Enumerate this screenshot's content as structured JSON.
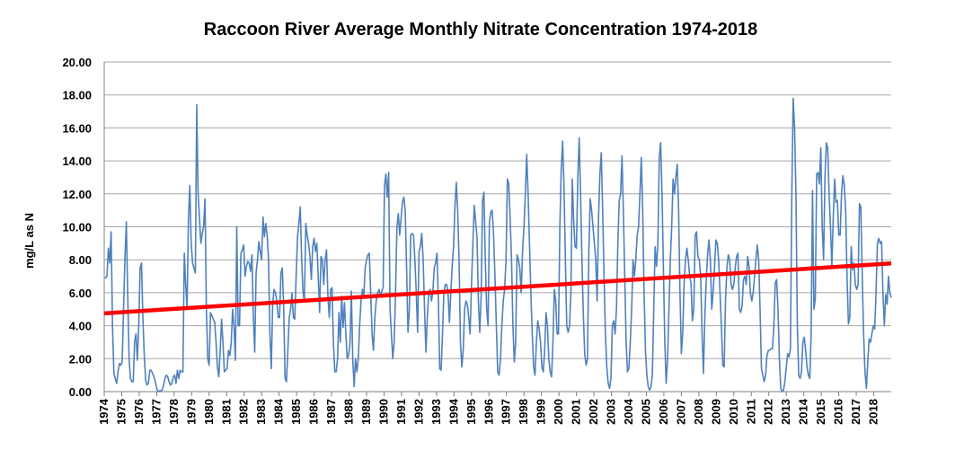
{
  "chart_data": {
    "type": "line",
    "title": "Raccoon River Average Monthly Nitrate Concentration 1974-2018",
    "xlabel": "",
    "ylabel": "mg/L as N",
    "xlim": [
      1974,
      2019
    ],
    "ylim": [
      0,
      20
    ],
    "y_ticks": [
      "0.00",
      "2.00",
      "4.00",
      "6.00",
      "8.00",
      "10.00",
      "12.00",
      "14.00",
      "16.00",
      "18.00",
      "20.00"
    ],
    "x_ticks": [
      "1974",
      "1975",
      "1976",
      "1977",
      "1978",
      "1979",
      "1980",
      "1981",
      "1982",
      "1983",
      "1984",
      "1985",
      "1986",
      "1987",
      "1988",
      "1989",
      "1990",
      "1991",
      "1992",
      "1993",
      "1994",
      "1995",
      "1996",
      "1997",
      "1998",
      "1999",
      "2000",
      "2001",
      "2002",
      "2003",
      "2004",
      "2005",
      "2006",
      "2007",
      "2008",
      "2009",
      "2010",
      "2011",
      "2012",
      "2013",
      "2014",
      "2015",
      "2016",
      "2017",
      "2018"
    ],
    "grid": {
      "horizontal": true,
      "vertical": false
    },
    "legend": "none",
    "colors": {
      "series": "#4f81bd",
      "trend": "#ff0000",
      "grid": "#a6a6a6",
      "axis": "#808080"
    },
    "series": [
      {
        "values": [
          6.9,
          6.9,
          7.0,
          8.7,
          7.8,
          9.7,
          4.0,
          1.1,
          0.8,
          0.5,
          1.2,
          1.7,
          1.6,
          1.8,
          5.0,
          8.0,
          10.3,
          6.0,
          2.0,
          0.8,
          0.6,
          0.6,
          3.0,
          3.5,
          1.9,
          4.0,
          7.5,
          7.8,
          4.5,
          2.2,
          0.7,
          0.4,
          0.5,
          1.3,
          1.3,
          1.1,
          0.9,
          0.6,
          0.2,
          0.0,
          0.05,
          0.05,
          0.1,
          0.4,
          0.8,
          1.0,
          0.9,
          0.6,
          0.4,
          0.5,
          0.9,
          1.0,
          0.5,
          1.3,
          0.8,
          1.3,
          1.2,
          1.2,
          8.4,
          6.5,
          5.0,
          10.5,
          12.5,
          9.0,
          7.8,
          7.5,
          7.2,
          17.4,
          12.0,
          10.5,
          9.0,
          9.6,
          10.0,
          11.7,
          5.0,
          2.0,
          1.6,
          4.8,
          4.6,
          4.4,
          4.2,
          3.0,
          1.5,
          0.9,
          2.5,
          4.4,
          3.0,
          1.2,
          1.3,
          1.4,
          2.5,
          2.2,
          3.0,
          5.0,
          4.0,
          1.9,
          10.0,
          4.0,
          4.0,
          8.4,
          8.6,
          8.9,
          7.0,
          7.6,
          7.9,
          7.8,
          7.3,
          8.3,
          4.6,
          2.4,
          7.2,
          8.0,
          9.1,
          8.5,
          8.0,
          10.6,
          9.4,
          10.2,
          9.5,
          8.0,
          3.5,
          1.4,
          5.3,
          6.2,
          6.0,
          5.5,
          4.5,
          4.5,
          7.2,
          7.5,
          5.0,
          0.8,
          0.6,
          2.5,
          4.5,
          5.0,
          6.0,
          4.5,
          4.4,
          7.0,
          9.4,
          10.2,
          11.2,
          8.0,
          6.0,
          5.5,
          10.2,
          9.5,
          9.0,
          8.2,
          6.8,
          8.8,
          9.3,
          8.5,
          9.0,
          7.0,
          4.8,
          8.2,
          8.0,
          6.5,
          8.0,
          8.6,
          5.8,
          4.5,
          6.2,
          6.3,
          3.0,
          1.2,
          1.2,
          2.0,
          4.8,
          3.0,
          5.8,
          3.9,
          5.4,
          3.5,
          2.0,
          2.2,
          2.9,
          6.1,
          2.0,
          0.3,
          2.0,
          1.2,
          2.0,
          4.0,
          5.5,
          6.2,
          5.8,
          7.5,
          8.0,
          8.3,
          8.4,
          6.0,
          3.5,
          2.5,
          4.5,
          5.5,
          6.0,
          6.2,
          5.8,
          6.1,
          6.3,
          12.5,
          13.2,
          11.8,
          13.3,
          5.0,
          3.5,
          2.0,
          3.0,
          6.0,
          10.0,
          10.8,
          9.5,
          10.5,
          11.5,
          11.8,
          11.0,
          7.5,
          3.6,
          5.0,
          9.5,
          9.6,
          9.5,
          8.0,
          6.0,
          3.6,
          8.5,
          8.8,
          9.6,
          8.0,
          5.0,
          2.4,
          4.5,
          6.0,
          6.2,
          5.5,
          6.0,
          7.5,
          7.8,
          8.4,
          5.6,
          1.4,
          1.3,
          3.5,
          6.0,
          6.5,
          6.5,
          6.0,
          4.2,
          6.0,
          7.6,
          8.8,
          11.2,
          12.7,
          11.0,
          8.0,
          3.0,
          1.5,
          2.5,
          5.0,
          5.5,
          5.3,
          4.5,
          3.5,
          6.5,
          9.0,
          11.3,
          10.3,
          9.4,
          5.5,
          3.6,
          5.8,
          11.6,
          12.1,
          8.0,
          5.0,
          4.0,
          10.3,
          10.9,
          11.0,
          9.5,
          7.0,
          4.0,
          1.2,
          1.0,
          2.0,
          4.0,
          5.5,
          6.2,
          8.0,
          12.9,
          12.6,
          10.5,
          8.0,
          4.0,
          1.8,
          3.0,
          8.3,
          8.0,
          7.5,
          6.0,
          8.5,
          10.0,
          12.0,
          14.4,
          12.0,
          9.0,
          6.0,
          3.5,
          1.5,
          1.0,
          3.0,
          4.3,
          3.8,
          3.0,
          1.5,
          1.2,
          2.5,
          4.8,
          4.0,
          2.0,
          1.2,
          0.9,
          3.0,
          6.2,
          5.5,
          3.5,
          3.5,
          10.0,
          13.5,
          15.2,
          12.5,
          8.0,
          4.0,
          3.6,
          4.0,
          6.0,
          12.9,
          10.4,
          8.8,
          8.7,
          13.0,
          15.4,
          12.0,
          8.0,
          4.7,
          2.3,
          1.6,
          2.0,
          8.5,
          11.7,
          11.0,
          10.0,
          9.0,
          8.0,
          5.5,
          10.5,
          13.2,
          14.5,
          11.0,
          7.0,
          3.5,
          1.5,
          0.5,
          0.2,
          0.8,
          4.0,
          4.3,
          3.5,
          5.0,
          9.0,
          11.6,
          12.0,
          14.3,
          11.0,
          7.0,
          3.0,
          1.2,
          1.4,
          3.0,
          5.0,
          8.0,
          7.0,
          8.0,
          9.5,
          10.0,
          12.0,
          14.2,
          11.0,
          6.0,
          2.5,
          1.0,
          0.3,
          0.1,
          0.3,
          1.0,
          5.0,
          8.8,
          7.6,
          9.0,
          14.2,
          15.1,
          12.0,
          7.5,
          3.0,
          0.5,
          2.0,
          5.0,
          8.0,
          10.0,
          12.9,
          12.0,
          13.0,
          13.8,
          11.0,
          6.0,
          2.3,
          3.6,
          6.6,
          8.0,
          8.7,
          8.0,
          7.0,
          6.6,
          4.3,
          5.0,
          9.5,
          9.7,
          8.2,
          8.0,
          7.0,
          3.5,
          1.1,
          4.5,
          6.7,
          8.3,
          9.2,
          8.0,
          5.0,
          6.0,
          7.5,
          9.2,
          9.0,
          8.0,
          6.0,
          4.0,
          1.6,
          1.5,
          5.6,
          7.5,
          8.3,
          8.0,
          6.5,
          6.2,
          6.5,
          7.5,
          8.2,
          8.4,
          5.0,
          4.8,
          5.2,
          6.8,
          7.0,
          6.5,
          8.2,
          7.6,
          6.0,
          5.5,
          6.0,
          7.0,
          8.0,
          8.9,
          8.0,
          5.0,
          1.4,
          1.0,
          0.6,
          1.0,
          2.2,
          2.5,
          2.5,
          2.6,
          2.6,
          4.0,
          6.6,
          6.8,
          5.0,
          2.0,
          0.2,
          0.0,
          0.1,
          0.6,
          1.5,
          2.3,
          2.1,
          2.6,
          12.0,
          17.8,
          16.0,
          12.0,
          4.0,
          1.0,
          0.8,
          1.2,
          3.0,
          3.3,
          2.5,
          1.5,
          1.0,
          0.8,
          3.5,
          12.2,
          5.0,
          5.6,
          13.2,
          13.3,
          12.6,
          14.8,
          10.0,
          8.0,
          13.0,
          15.1,
          14.8,
          12.0,
          10.0,
          7.6,
          10.5,
          12.9,
          11.5,
          11.6,
          9.5,
          9.5,
          12.0,
          13.1,
          12.5,
          11.0,
          7.0,
          4.1,
          4.5,
          8.8,
          7.4,
          7.8,
          6.5,
          6.2,
          6.5,
          11.4,
          11.2,
          7.0,
          3.5,
          1.2,
          0.2,
          1.8,
          3.2,
          3.0,
          3.5,
          4.0,
          3.8,
          6.0,
          9.0,
          9.3,
          9.0,
          9.1,
          6.0,
          4.0,
          5.9,
          5.3,
          7.0,
          6.0,
          5.7
        ]
      }
    ],
    "trend": {
      "type": "linear",
      "start_value": 4.75,
      "end_value": 7.78
    }
  }
}
